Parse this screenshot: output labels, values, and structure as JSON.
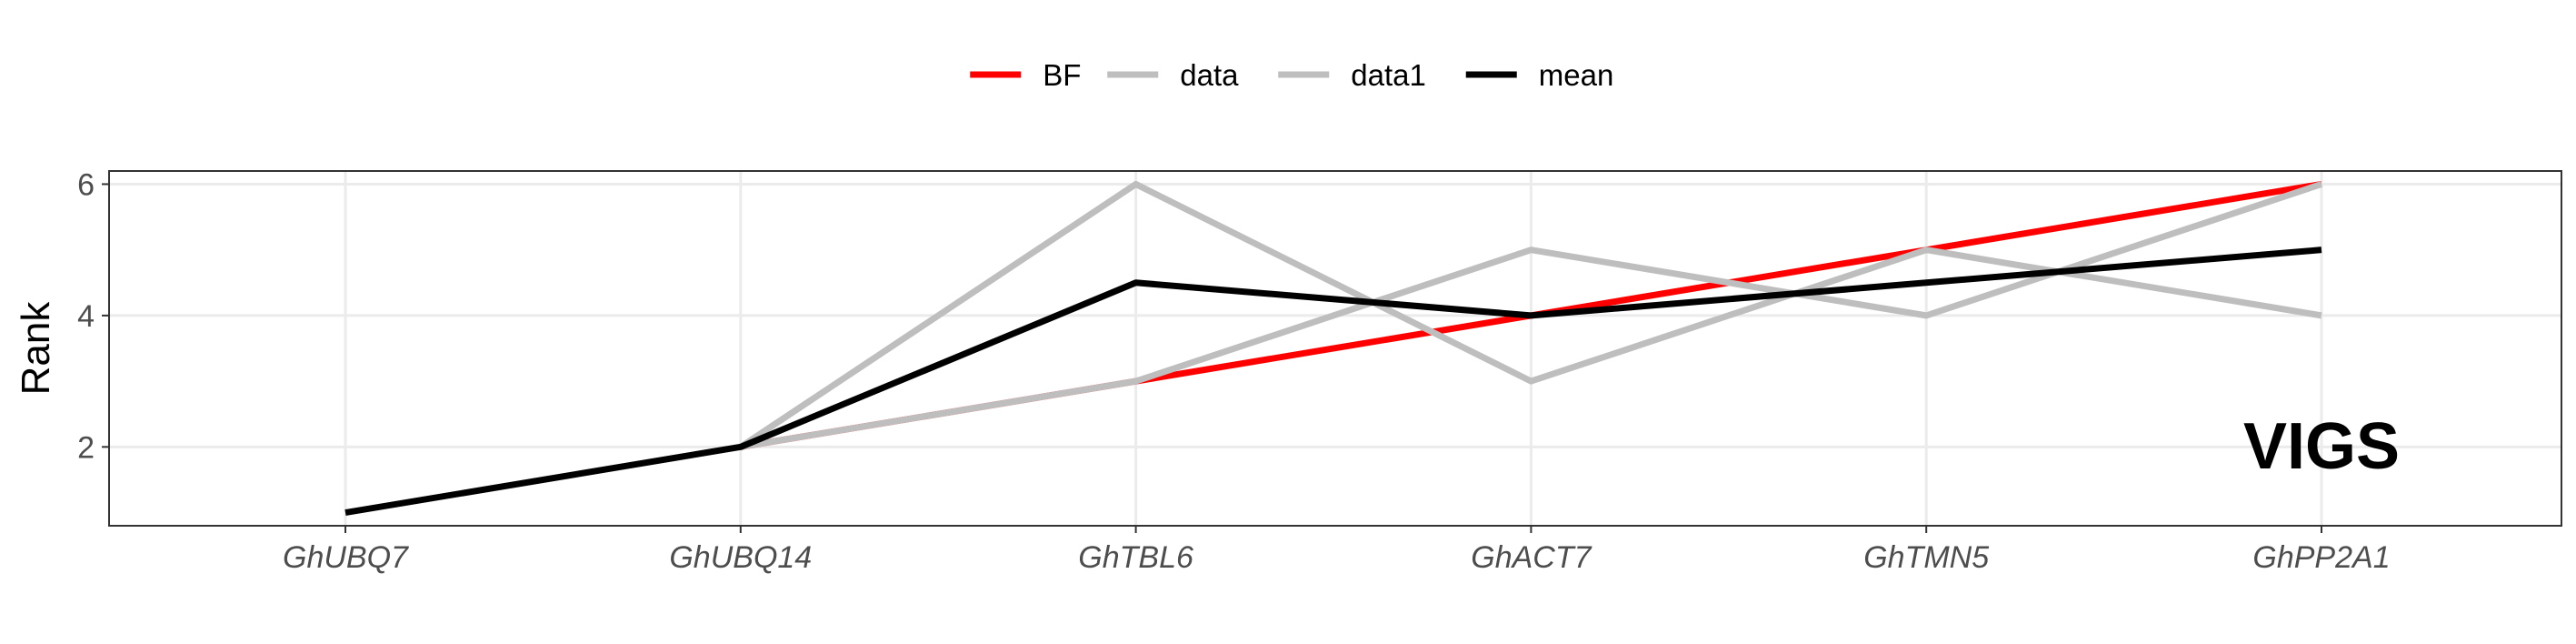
{
  "chart_data": {
    "type": "line",
    "title": "",
    "xlabel": "",
    "ylabel": "Rank",
    "categories": [
      "GhUBQ7",
      "GhUBQ14",
      "GhTBL6",
      "GhACT7",
      "GhTMN5",
      "GhPP2A1"
    ],
    "ylim": [
      0.8,
      6.2
    ],
    "yticks": [
      2,
      4,
      6
    ],
    "grid": true,
    "legend_position": "top",
    "annotation": "VIGS",
    "series": [
      {
        "name": "BF",
        "color": "#ff0000",
        "values": [
          null,
          2,
          3,
          4,
          5,
          6
        ]
      },
      {
        "name": "data",
        "color": "#bebebe",
        "values": [
          null,
          2,
          6,
          3,
          5,
          4
        ]
      },
      {
        "name": "data1",
        "color": "#bebebe",
        "values": [
          null,
          2,
          3,
          5,
          4,
          6
        ]
      },
      {
        "name": "mean",
        "color": "#000000",
        "values": [
          1,
          2,
          4.5,
          4,
          4.5,
          5
        ]
      }
    ]
  }
}
